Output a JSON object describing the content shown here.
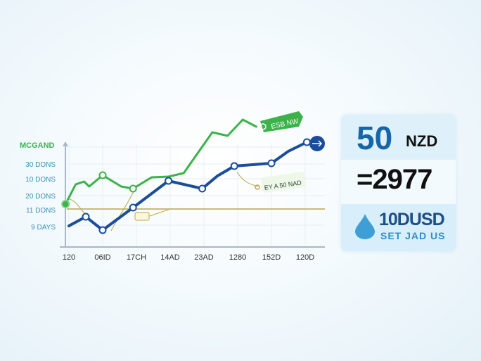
{
  "chart_data": {
    "type": "line",
    "title": "MCGAND",
    "y_tick_labels": [
      "30 DONS",
      "10 DONS",
      "20 DONS",
      "11 DONS",
      "9 DAYS"
    ],
    "x_tick_labels": [
      "120",
      "06ID",
      "17CH",
      "14AD",
      "23AD",
      "1280",
      "152D",
      "120D"
    ],
    "ylim": [
      0,
      90
    ],
    "grid": true,
    "reference_line": 26.5,
    "series": [
      {
        "color": "#3bb34a",
        "x": [
          -0.1,
          0.2,
          0.45,
          0.6,
          1,
          1.55,
          1.9,
          2.45,
          2.95,
          3.4,
          4.25,
          4.7,
          5.15,
          5.55
        ],
        "y": [
          30,
          44,
          46,
          42.5,
          50.5,
          42.5,
          41,
          49,
          49.5,
          52,
          81,
          78.5,
          90,
          85
        ]
      },
      {
        "color": "#1a4d9c",
        "x": [
          0,
          0.5,
          1,
          1.9,
          2.95,
          3.95,
          4.4,
          4.9,
          6,
          6.5,
          7.05
        ],
        "y": [
          14.5,
          21,
          11.5,
          27.5,
          46.5,
          41,
          50,
          57,
          59,
          67.5,
          74
        ]
      }
    ],
    "annotations": [
      "ESB NW",
      "EY A 50 NAD"
    ]
  },
  "panel": {
    "amount": "50",
    "currency": "NZD",
    "rate": "=2977",
    "usd": "10DUSD",
    "sub": "SET JAD US",
    "drop_icon": "water-drop-icon"
  },
  "colors": {
    "green": "#3bb34a",
    "blue": "#1a4d9c",
    "olive": "#b7a84a",
    "label": "#3b8fb8"
  }
}
